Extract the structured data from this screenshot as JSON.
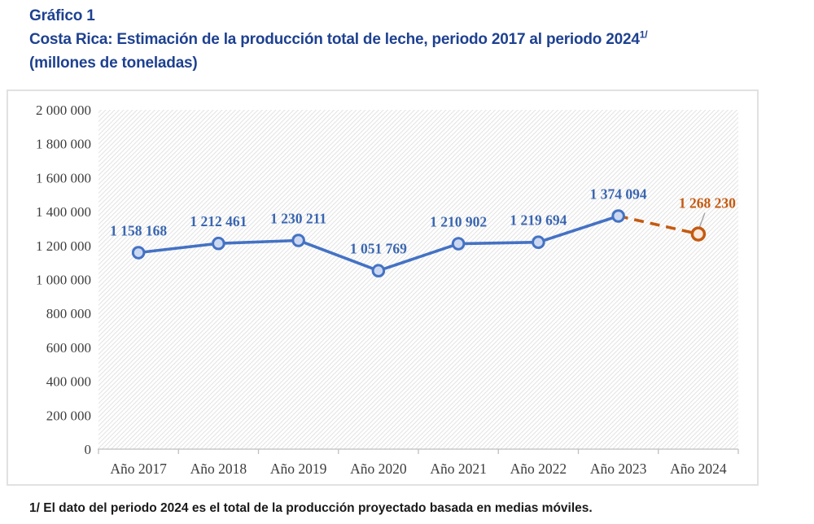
{
  "page": {
    "title_label": "Gráfico 1",
    "title_line2": "Costa Rica: Estimación de la producción total de leche, periodo 2017 al periodo 2024",
    "title_superscript": "1/",
    "title_line3": "(millones de toneladas)",
    "footnote": "1/ El dato del periodo 2024 es el total de la producción proyectado basada en medias móviles."
  },
  "chart_data": {
    "type": "line",
    "title": "Costa Rica: Estimación de la producción total de leche, periodo 2017 al periodo 2024 (millones de toneladas)",
    "categories": [
      "Año 2017",
      "Año 2018",
      "Año 2019",
      "Año 2020",
      "Año 2021",
      "Año 2022",
      "Año 2023",
      "Año 2024"
    ],
    "values": [
      1158168,
      1212461,
      1230211,
      1051769,
      1210902,
      1219694,
      1374094,
      1268230
    ],
    "data_labels": [
      "1 158 168",
      "1 212 461",
      "1 230 211",
      "1 051 769",
      "1 210 902",
      "1 219 694",
      "1 374 094",
      "1 268 230"
    ],
    "projection_start_index": 6,
    "projection_note": "last segment dashed: projected value for Año 2024",
    "ylim": [
      0,
      2000000
    ],
    "ytick_step": 200000,
    "ytick_labels": [
      "0",
      "200 000",
      "400 000",
      "600 000",
      "800 000",
      "1 000 000",
      "1 200 000",
      "1 400 000",
      "1 600 000",
      "1 800 000",
      "2 000 000"
    ],
    "xlabel": "",
    "ylabel": "",
    "grid": false,
    "legend": false,
    "plot_background": "diagonal-hatch",
    "colors": {
      "actual_line": "#4472C4",
      "actual_marker_fill": "#CBD8F0",
      "actual_label": "#3A66B0",
      "projection_line": "#C55A11",
      "projection_marker_fill": "#FBEADD",
      "projection_label": "#C55A11",
      "axis": "#BFBFBF",
      "hatch": "#E4E4E4",
      "leader": "#A6A6A6"
    }
  }
}
